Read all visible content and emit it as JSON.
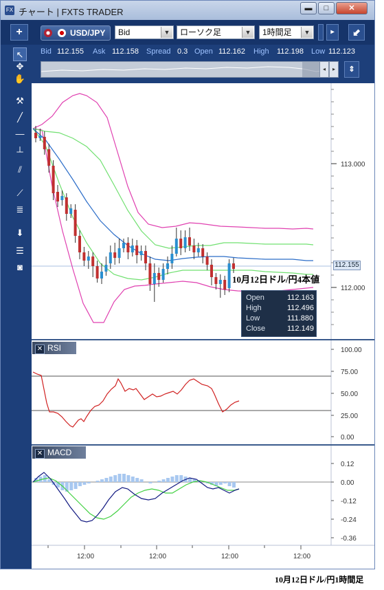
{
  "window": {
    "title": "チャート | FXTS TRADER",
    "app_icon": "FX"
  },
  "toolbar": {
    "pair": "USD/JPY",
    "price_type": "Bid",
    "chart_type": "ローソク足",
    "timeframe": "1時間足"
  },
  "quotes": {
    "bid_label": "Bid",
    "bid": "112.155",
    "ask_label": "Ask",
    "ask": "112.158",
    "spread_label": "Spread",
    "spread": "0.3",
    "open_label": "Open",
    "open": "112.162",
    "high_label": "High",
    "high": "112.198",
    "low_label": "Low",
    "low": "112.123"
  },
  "tools": [
    "cursor-arrow",
    "crosshair",
    "hand",
    "hammer",
    "line",
    "horizontal-line",
    "vertical-line",
    "parallel-lines",
    "fan",
    "fibonacci",
    "arrow-down",
    "list",
    "camera"
  ],
  "price_chart": {
    "y_ticks": [
      "113.000",
      "112.000"
    ],
    "current_price": "112.155",
    "annotation": "10月12日ドル/円4本値",
    "ohlc": {
      "open_label": "Open",
      "open": "112.163",
      "high_label": "High",
      "high": "112.496",
      "low_label": "Low",
      "low": "111.880",
      "close_label": "Close",
      "close": "112.149"
    }
  },
  "rsi_panel": {
    "label": "RSI",
    "y_ticks": [
      "100.00",
      "75.00",
      "50.00",
      "25.00",
      "0.00"
    ]
  },
  "macd_panel": {
    "label": "MACD",
    "y_ticks": [
      "0.12",
      "0.00",
      "-0.12",
      "-0.24",
      "-0.36"
    ]
  },
  "x_axis": {
    "ticks": [
      "12:00",
      "12:00",
      "12:00",
      "12:00"
    ]
  },
  "caption": "10月12日ドル/円1時間足",
  "colors": {
    "frame": "#1d3f7a",
    "up_candle": "#2a8fd0",
    "down_candle": "#c03030",
    "bollinger_outer": "#e040b0",
    "bollinger_inner": "#70e070",
    "moving_average": "#2a6cc8",
    "rsi_line": "#d02020",
    "macd_line": "#101880",
    "signal_line": "#40d040",
    "histogram": "#a8c8f0"
  }
}
